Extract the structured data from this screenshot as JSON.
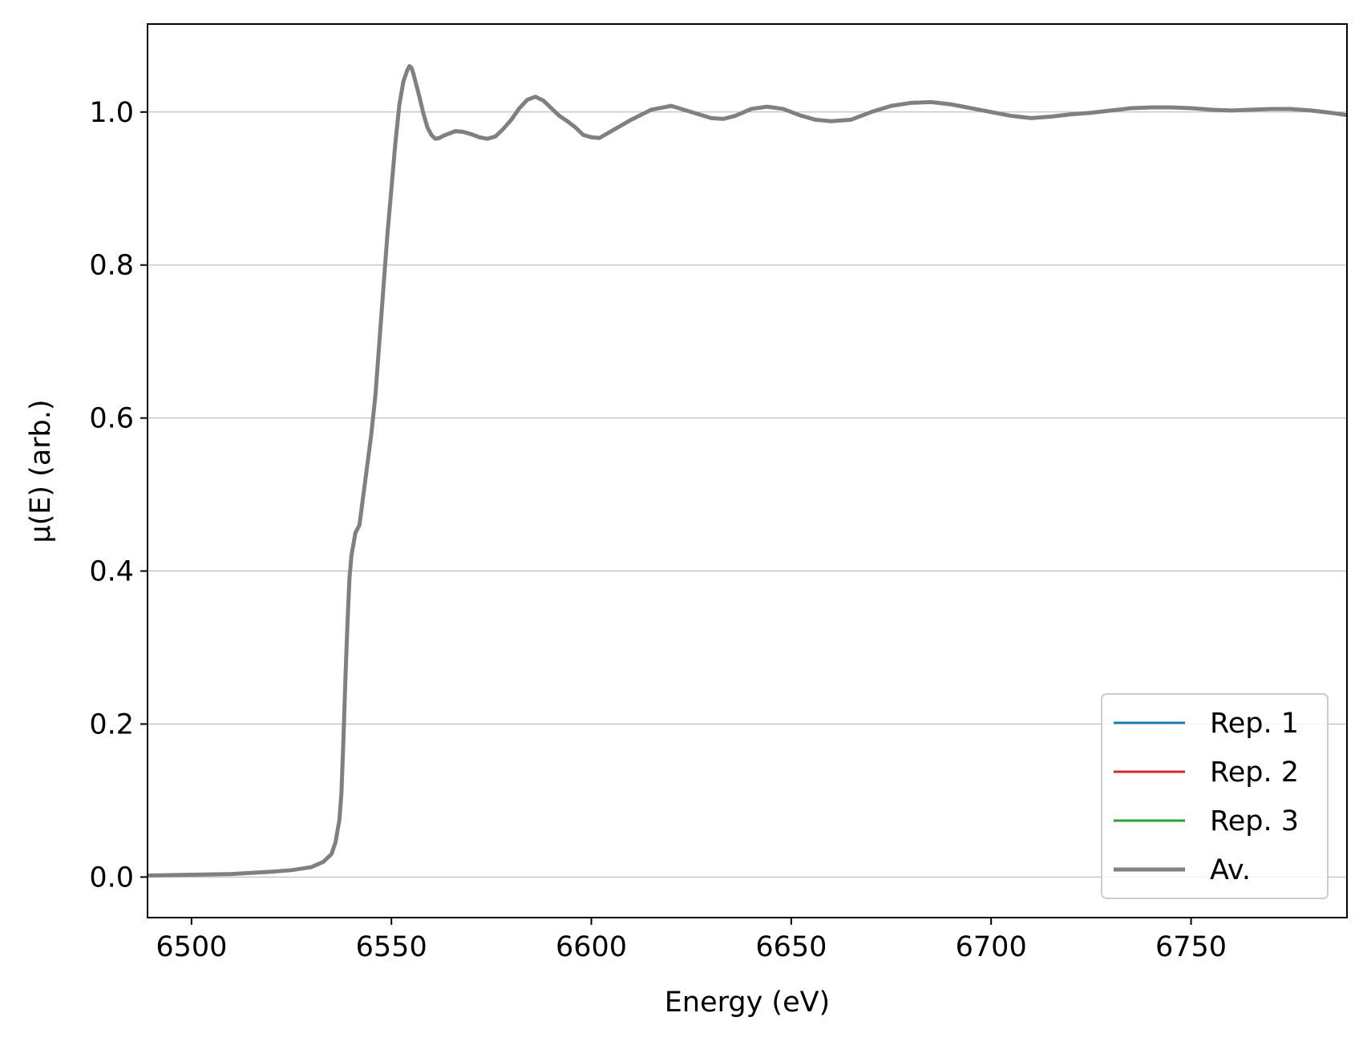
{
  "chart_data": {
    "type": "line",
    "title": "",
    "xlabel": "Energy (eV)",
    "ylabel": "μ(E) (arb.)",
    "xlim": [
      6489,
      6789
    ],
    "ylim": [
      -0.053,
      1.115
    ],
    "xticks": [
      6500,
      6550,
      6600,
      6650,
      6700,
      6750
    ],
    "xtick_labels": [
      "6500",
      "6550",
      "6600",
      "6650",
      "6700",
      "6750"
    ],
    "yticks": [
      0.0,
      0.2,
      0.4,
      0.6,
      0.8,
      1.0
    ],
    "ytick_labels": [
      "0.0",
      "0.2",
      "0.4",
      "0.6",
      "0.8",
      "1.0"
    ],
    "grid": "horizontal",
    "legend_position": "lower-right",
    "x": [
      6489,
      6500,
      6510,
      6520,
      6525,
      6530,
      6533,
      6535,
      6536,
      6537,
      6537.5,
      6538,
      6538.5,
      6539,
      6539.5,
      6540,
      6541,
      6542,
      6543,
      6544,
      6545,
      6546,
      6547,
      6548,
      6549,
      6550,
      6551,
      6552,
      6553,
      6554,
      6554.5,
      6555,
      6555.5,
      6556,
      6557,
      6558,
      6559,
      6560,
      6561,
      6562,
      6563,
      6564,
      6566,
      6568,
      6570,
      6572,
      6574,
      6576,
      6578,
      6580,
      6582,
      6584,
      6586,
      6588,
      6590,
      6592,
      6594,
      6596,
      6598,
      6600,
      6602,
      6605,
      6610,
      6615,
      6620,
      6625,
      6630,
      6633,
      6636,
      6640,
      6644,
      6648,
      6652,
      6656,
      6660,
      6665,
      6670,
      6675,
      6680,
      6685,
      6690,
      6695,
      6700,
      6705,
      6710,
      6715,
      6720,
      6725,
      6730,
      6735,
      6740,
      6745,
      6750,
      6755,
      6760,
      6765,
      6770,
      6775,
      6780,
      6785,
      6789
    ],
    "series": [
      {
        "name": "Rep. 1",
        "color": "#1f77b4",
        "values": [
          0.002,
          0.003,
          0.004,
          0.007,
          0.009,
          0.013,
          0.02,
          0.03,
          0.045,
          0.075,
          0.11,
          0.18,
          0.26,
          0.33,
          0.39,
          0.42,
          0.45,
          0.46,
          0.5,
          0.54,
          0.58,
          0.63,
          0.7,
          0.77,
          0.84,
          0.9,
          0.96,
          1.01,
          1.04,
          1.055,
          1.06,
          1.058,
          1.05,
          1.04,
          1.02,
          0.998,
          0.98,
          0.97,
          0.965,
          0.966,
          0.968,
          0.97,
          0.974,
          0.973,
          0.97,
          0.967,
          0.965,
          0.968,
          0.978,
          0.99,
          1.005,
          1.016,
          1.02,
          1.015,
          1.005,
          0.995,
          0.988,
          0.98,
          0.97,
          0.966,
          0.966,
          0.975,
          0.99,
          1.003,
          1.008,
          1.0,
          0.992,
          0.991,
          0.995,
          1.004,
          1.007,
          1.004,
          0.996,
          0.99,
          0.988,
          0.99,
          1.0,
          1.008,
          1.012,
          1.013,
          1.01,
          1.005,
          1.0,
          0.995,
          0.992,
          0.994,
          0.997,
          0.999,
          1.002,
          1.005,
          1.006,
          1.006,
          1.005,
          1.003,
          1.002,
          1.003,
          1.004,
          1.004,
          1.002,
          0.999,
          0.996
        ]
      },
      {
        "name": "Rep. 2",
        "color": "#d62728",
        "values": [
          0.002,
          0.003,
          0.004,
          0.007,
          0.009,
          0.013,
          0.02,
          0.03,
          0.045,
          0.075,
          0.11,
          0.18,
          0.26,
          0.33,
          0.39,
          0.42,
          0.45,
          0.46,
          0.5,
          0.54,
          0.58,
          0.63,
          0.7,
          0.77,
          0.84,
          0.9,
          0.96,
          1.01,
          1.04,
          1.055,
          1.06,
          1.058,
          1.05,
          1.04,
          1.02,
          0.998,
          0.98,
          0.97,
          0.966,
          0.967,
          0.97,
          0.972,
          0.976,
          0.975,
          0.972,
          0.968,
          0.965,
          0.968,
          0.978,
          0.99,
          1.005,
          1.016,
          1.02,
          1.015,
          1.005,
          0.995,
          0.988,
          0.98,
          0.97,
          0.968,
          0.967,
          0.975,
          0.99,
          1.003,
          1.008,
          1.0,
          0.992,
          0.991,
          0.995,
          1.004,
          1.007,
          1.004,
          0.996,
          0.99,
          0.988,
          0.99,
          1.0,
          1.008,
          1.012,
          1.013,
          1.01,
          1.005,
          1.0,
          0.995,
          0.992,
          0.994,
          0.997,
          0.999,
          1.002,
          1.005,
          1.006,
          1.006,
          1.005,
          1.003,
          1.002,
          1.003,
          1.004,
          1.004,
          1.002,
          0.999,
          0.996
        ]
      },
      {
        "name": "Rep. 3",
        "color": "#2ca02c",
        "values": [
          0.002,
          0.003,
          0.004,
          0.007,
          0.009,
          0.013,
          0.02,
          0.03,
          0.045,
          0.075,
          0.11,
          0.18,
          0.26,
          0.33,
          0.39,
          0.42,
          0.45,
          0.46,
          0.5,
          0.54,
          0.58,
          0.63,
          0.7,
          0.77,
          0.84,
          0.9,
          0.96,
          1.01,
          1.04,
          1.055,
          1.06,
          1.058,
          1.05,
          1.04,
          1.02,
          0.998,
          0.98,
          0.97,
          0.965,
          0.966,
          0.968,
          0.971,
          0.975,
          0.974,
          0.971,
          0.967,
          0.965,
          0.968,
          0.978,
          0.99,
          1.005,
          1.016,
          1.02,
          1.015,
          1.005,
          0.995,
          0.988,
          0.98,
          0.97,
          0.967,
          0.966,
          0.975,
          0.99,
          1.003,
          1.008,
          1.0,
          0.992,
          0.991,
          0.995,
          1.004,
          1.007,
          1.004,
          0.996,
          0.99,
          0.988,
          0.99,
          1.0,
          1.008,
          1.012,
          1.013,
          1.01,
          1.005,
          1.0,
          0.995,
          0.992,
          0.994,
          0.997,
          0.999,
          1.002,
          1.005,
          1.006,
          1.006,
          1.005,
          1.003,
          1.002,
          1.003,
          1.004,
          1.004,
          1.002,
          0.999,
          0.996
        ]
      },
      {
        "name": "Av.",
        "color": "#808080",
        "values": [
          0.002,
          0.003,
          0.004,
          0.007,
          0.009,
          0.013,
          0.02,
          0.03,
          0.045,
          0.075,
          0.11,
          0.18,
          0.26,
          0.33,
          0.39,
          0.42,
          0.45,
          0.46,
          0.5,
          0.54,
          0.58,
          0.63,
          0.7,
          0.77,
          0.84,
          0.9,
          0.96,
          1.01,
          1.04,
          1.055,
          1.06,
          1.058,
          1.05,
          1.04,
          1.02,
          0.998,
          0.98,
          0.97,
          0.965,
          0.966,
          0.969,
          0.971,
          0.975,
          0.974,
          0.971,
          0.967,
          0.965,
          0.968,
          0.978,
          0.99,
          1.005,
          1.016,
          1.02,
          1.015,
          1.005,
          0.995,
          0.988,
          0.98,
          0.97,
          0.967,
          0.966,
          0.975,
          0.99,
          1.003,
          1.008,
          1.0,
          0.992,
          0.991,
          0.995,
          1.004,
          1.007,
          1.004,
          0.996,
          0.99,
          0.988,
          0.99,
          1.0,
          1.008,
          1.012,
          1.013,
          1.01,
          1.005,
          1.0,
          0.995,
          0.992,
          0.994,
          0.997,
          0.999,
          1.002,
          1.005,
          1.006,
          1.006,
          1.005,
          1.003,
          1.002,
          1.003,
          1.004,
          1.004,
          1.002,
          0.999,
          0.996
        ]
      }
    ]
  }
}
